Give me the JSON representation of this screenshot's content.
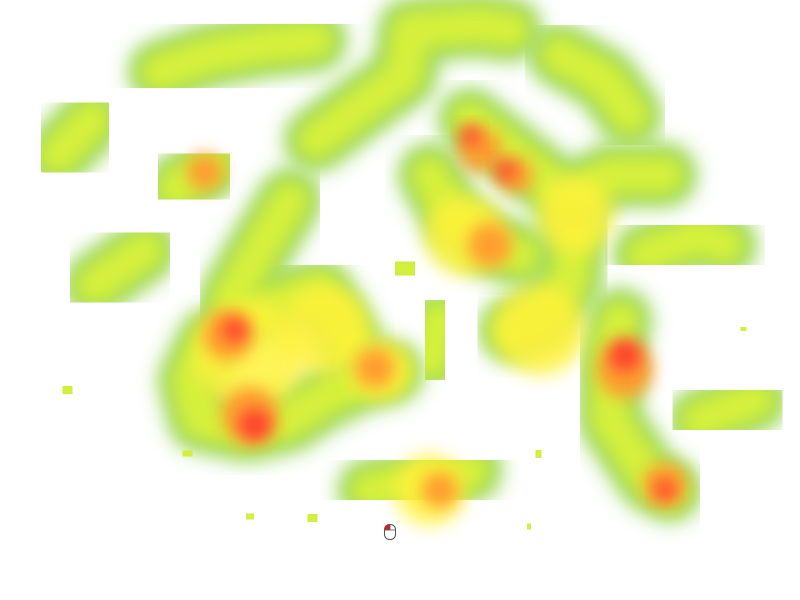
{
  "heatmap": {
    "palette": {
      "low": "#8fd14f",
      "mid": "#d9f23a",
      "high_mid": "#fff23a",
      "warm": "#ff9a2e",
      "hot": "#ff3b2f"
    },
    "cursor": {
      "icon": "mouse-icon",
      "left_button_color": "#d61f1f"
    }
  }
}
